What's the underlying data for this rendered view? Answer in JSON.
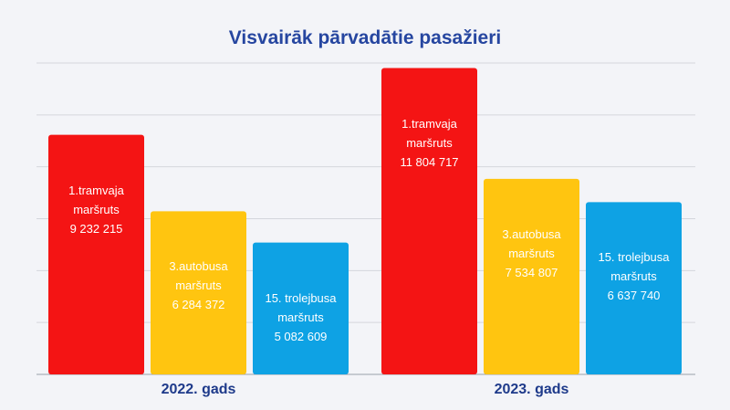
{
  "chart_data": {
    "type": "bar",
    "title": "Visvairāk pārvadātie pasažieri",
    "categories": [
      "2022. gads",
      "2023. gads"
    ],
    "series": [
      {
        "name": "1.tramvaja maršruts",
        "color": "#f41414",
        "values": [
          9232215,
          11804717
        ],
        "value_labels": [
          "9 232 215",
          "11 804 717"
        ]
      },
      {
        "name": "3.autobusa maršruts",
        "color": "#ffc510",
        "values": [
          6284372,
          7534807
        ],
        "value_labels": [
          "6 284 372",
          "7 534 807"
        ]
      },
      {
        "name": "15. trolejbusa maršruts",
        "color": "#0ea2e4",
        "values": [
          5082609,
          6637740
        ],
        "value_labels": [
          "5 082 609",
          "6 637 740"
        ]
      }
    ],
    "ylim": [
      0,
      12000000
    ],
    "yticks": [
      0,
      2000000,
      4000000,
      6000000,
      8000000,
      10000000,
      12000000
    ],
    "grid": true
  }
}
